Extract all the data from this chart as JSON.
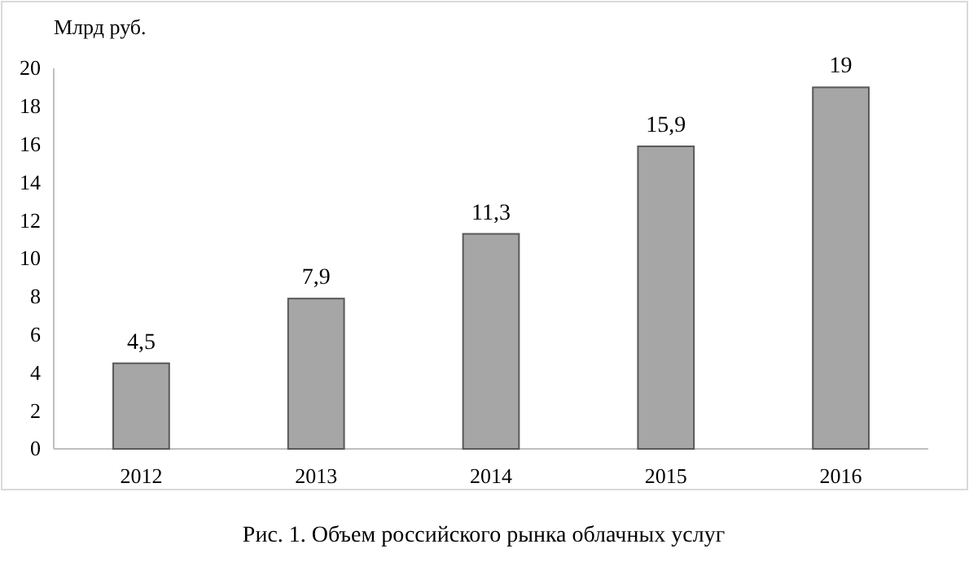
{
  "chart_data": {
    "type": "bar",
    "ylabel": "Млрд руб.",
    "categories": [
      "2012",
      "2013",
      "2014",
      "2015",
      "2016"
    ],
    "values": [
      4.5,
      7.9,
      11.3,
      15.9,
      19
    ],
    "value_labels": [
      "4,5",
      "7,9",
      "11,3",
      "15,9",
      "19"
    ],
    "color": "#a6a6a6",
    "ylim": [
      0,
      20
    ],
    "yticks": [
      0,
      2,
      4,
      6,
      8,
      10,
      12,
      14,
      16,
      18,
      20
    ],
    "grid": false,
    "annotations": [
      "Рис. 1. Объем российского рынка облачных услуг"
    ]
  }
}
